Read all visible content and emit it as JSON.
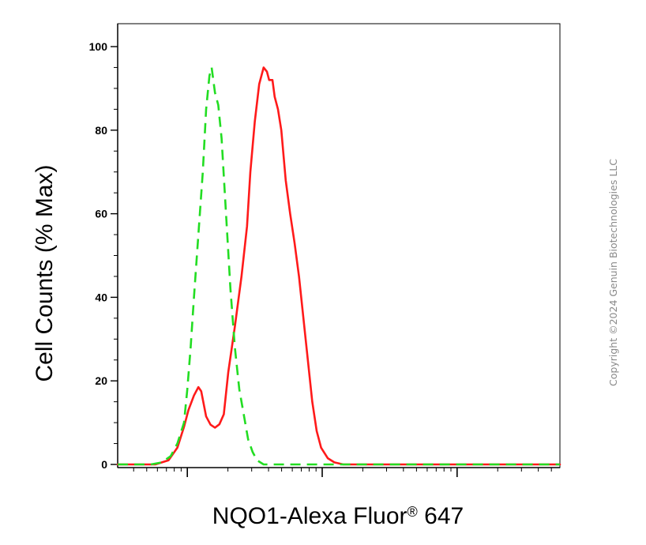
{
  "chart_data": {
    "type": "line",
    "xlabel_main": "NQO1-Alexa Fluor",
    "xlabel_reg": "®",
    "xlabel_tail": " 647",
    "ylabel": "Cell Counts (% Max)",
    "ylim": [
      0,
      100
    ],
    "yticks": [
      "0",
      "20",
      "40",
      "60",
      "80",
      "100"
    ],
    "x_scale": "log",
    "grid": false,
    "series": [
      {
        "color": "#ff1a1a",
        "style": "solid",
        "points": [
          [
            0.0,
            0
          ],
          [
            0.17,
            0
          ],
          [
            0.23,
            1
          ],
          [
            0.27,
            4
          ],
          [
            0.3,
            9
          ],
          [
            0.32,
            13
          ],
          [
            0.345,
            16.5
          ],
          [
            0.365,
            18.5
          ],
          [
            0.378,
            17.5
          ],
          [
            0.4,
            11.5
          ],
          [
            0.42,
            9.5
          ],
          [
            0.44,
            8.8
          ],
          [
            0.46,
            9.6
          ],
          [
            0.48,
            12
          ],
          [
            0.5,
            22
          ],
          [
            0.53,
            33
          ],
          [
            0.56,
            45
          ],
          [
            0.585,
            57
          ],
          [
            0.6,
            70
          ],
          [
            0.62,
            82
          ],
          [
            0.64,
            91
          ],
          [
            0.66,
            95
          ],
          [
            0.675,
            94
          ],
          [
            0.685,
            92
          ],
          [
            0.7,
            92
          ],
          [
            0.71,
            88
          ],
          [
            0.725,
            85
          ],
          [
            0.74,
            80
          ],
          [
            0.76,
            68
          ],
          [
            0.78,
            60
          ],
          [
            0.8,
            53
          ],
          [
            0.82,
            45
          ],
          [
            0.84,
            35
          ],
          [
            0.86,
            25
          ],
          [
            0.88,
            15
          ],
          [
            0.9,
            8
          ],
          [
            0.92,
            4
          ],
          [
            0.95,
            1.5
          ],
          [
            0.98,
            0.5
          ],
          [
            1.02,
            0
          ],
          [
            1.25,
            0
          ],
          [
            1.6,
            0
          ],
          [
            2.0,
            0
          ]
        ]
      },
      {
        "color": "#22dd22",
        "style": "dashed",
        "points": [
          [
            0.0,
            0
          ],
          [
            0.15,
            0
          ],
          [
            0.2,
            0.5
          ],
          [
            0.24,
            2
          ],
          [
            0.27,
            5
          ],
          [
            0.3,
            10
          ],
          [
            0.315,
            18
          ],
          [
            0.33,
            28
          ],
          [
            0.345,
            40
          ],
          [
            0.365,
            55
          ],
          [
            0.385,
            70
          ],
          [
            0.4,
            85
          ],
          [
            0.415,
            93
          ],
          [
            0.425,
            95
          ],
          [
            0.44,
            89
          ],
          [
            0.455,
            86
          ],
          [
            0.47,
            78
          ],
          [
            0.49,
            60
          ],
          [
            0.51,
            42
          ],
          [
            0.53,
            28
          ],
          [
            0.55,
            18
          ],
          [
            0.57,
            12
          ],
          [
            0.59,
            6
          ],
          [
            0.61,
            3
          ],
          [
            0.63,
            1
          ],
          [
            0.66,
            0
          ],
          [
            0.7,
            0
          ],
          [
            1.0,
            0
          ],
          [
            1.7,
            0
          ],
          [
            2.0,
            0
          ]
        ]
      }
    ]
  },
  "watermark": "Copyright ©2024 Genuin Biotechnologies LLC"
}
